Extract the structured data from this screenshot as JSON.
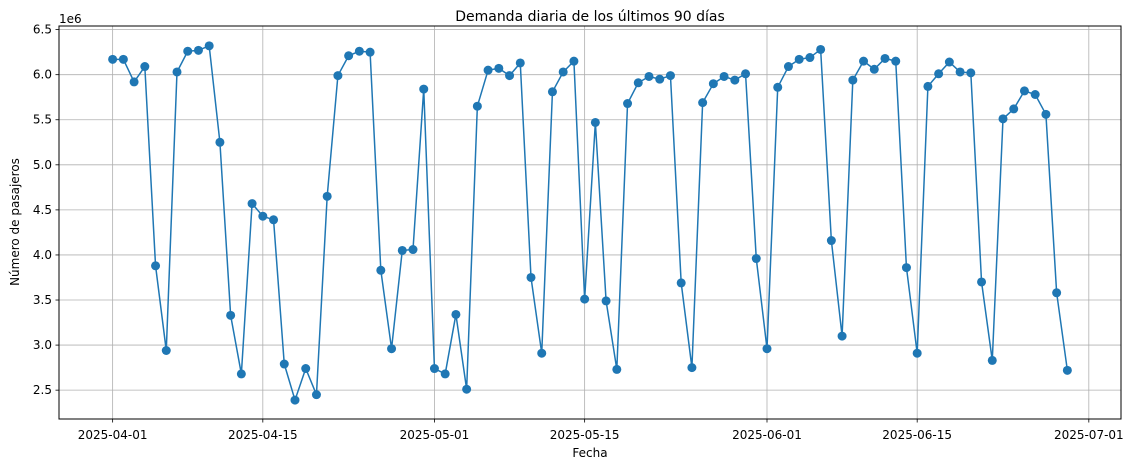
{
  "chart_data": {
    "type": "line",
    "title": "Demanda diaria de los últimos 90 días",
    "xlabel": "Fecha",
    "ylabel": "Número de pasajeros",
    "y_offset_label": "1e6",
    "y_multiplier": 1000000,
    "ylim": [
      2.18,
      6.54
    ],
    "xlim": [
      "2025-03-27",
      "2025-07-04"
    ],
    "grid": true,
    "line_color": "#1f77b4",
    "marker": "circle",
    "y_ticks": [
      2.5,
      3.0,
      3.5,
      4.0,
      4.5,
      5.0,
      5.5,
      6.0,
      6.5
    ],
    "y_tick_labels": [
      "2.5",
      "3.0",
      "3.5",
      "4.0",
      "4.5",
      "5.0",
      "5.5",
      "6.0",
      "6.5"
    ],
    "x_ticks": [
      "2025-04-01",
      "2025-04-15",
      "2025-05-01",
      "2025-05-15",
      "2025-06-01",
      "2025-06-15",
      "2025-07-01"
    ],
    "x_tick_labels": [
      "2025-04-01",
      "2025-04-15",
      "2025-05-01",
      "2025-05-15",
      "2025-06-01",
      "2025-06-15",
      "2025-07-01"
    ],
    "series": [
      {
        "x": [
          "2025-04-01",
          "2025-04-02",
          "2025-04-03",
          "2025-04-04",
          "2025-04-05",
          "2025-04-06",
          "2025-04-07",
          "2025-04-08",
          "2025-04-09",
          "2025-04-10",
          "2025-04-11",
          "2025-04-12",
          "2025-04-13",
          "2025-04-14",
          "2025-04-15",
          "2025-04-16",
          "2025-04-17",
          "2025-04-18",
          "2025-04-19",
          "2025-04-20",
          "2025-04-21",
          "2025-04-22",
          "2025-04-23",
          "2025-04-24",
          "2025-04-25",
          "2025-04-26",
          "2025-04-27",
          "2025-04-28",
          "2025-04-29",
          "2025-04-30",
          "2025-05-01",
          "2025-05-02",
          "2025-05-03",
          "2025-05-04",
          "2025-05-05",
          "2025-05-06",
          "2025-05-07",
          "2025-05-08",
          "2025-05-09",
          "2025-05-10",
          "2025-05-11",
          "2025-05-12",
          "2025-05-13",
          "2025-05-14",
          "2025-05-15",
          "2025-05-16",
          "2025-05-17",
          "2025-05-18",
          "2025-05-19",
          "2025-05-20",
          "2025-05-21",
          "2025-05-22",
          "2025-05-23",
          "2025-05-24",
          "2025-05-25",
          "2025-05-26",
          "2025-05-27",
          "2025-05-28",
          "2025-05-29",
          "2025-05-30",
          "2025-05-31",
          "2025-06-01",
          "2025-06-02",
          "2025-06-03",
          "2025-06-04",
          "2025-06-05",
          "2025-06-06",
          "2025-06-07",
          "2025-06-08",
          "2025-06-09",
          "2025-06-10",
          "2025-06-11",
          "2025-06-12",
          "2025-06-13",
          "2025-06-14",
          "2025-06-15",
          "2025-06-16",
          "2025-06-17",
          "2025-06-18",
          "2025-06-19",
          "2025-06-20",
          "2025-06-21",
          "2025-06-22",
          "2025-06-23",
          "2025-06-24",
          "2025-06-25",
          "2025-06-26",
          "2025-06-27",
          "2025-06-28",
          "2025-06-29"
        ],
        "values": [
          6.17,
          6.17,
          5.92,
          6.09,
          3.88,
          2.94,
          6.03,
          6.26,
          6.27,
          6.32,
          5.25,
          3.33,
          2.68,
          4.57,
          4.43,
          4.39,
          2.79,
          2.39,
          2.74,
          2.45,
          4.65,
          5.99,
          6.21,
          6.26,
          6.25,
          3.83,
          2.96,
          4.05,
          4.06,
          5.84,
          2.74,
          2.68,
          3.34,
          2.51,
          5.65,
          6.05,
          6.07,
          5.99,
          6.13,
          3.75,
          2.91,
          5.81,
          6.03,
          6.15,
          3.51,
          5.47,
          3.49,
          2.73,
          5.68,
          5.91,
          5.98,
          5.95,
          5.99,
          3.69,
          2.75,
          5.69,
          5.9,
          5.98,
          5.94,
          6.01,
          3.96,
          2.96,
          5.86,
          6.09,
          6.17,
          6.19,
          6.28,
          4.16,
          3.1,
          5.94,
          6.15,
          6.06,
          6.18,
          6.15,
          3.86,
          2.91,
          5.87,
          6.01,
          6.14,
          6.03,
          6.02,
          3.7,
          2.83,
          5.51,
          5.62,
          5.82,
          5.78,
          5.56,
          3.58,
          2.72
        ]
      }
    ]
  }
}
